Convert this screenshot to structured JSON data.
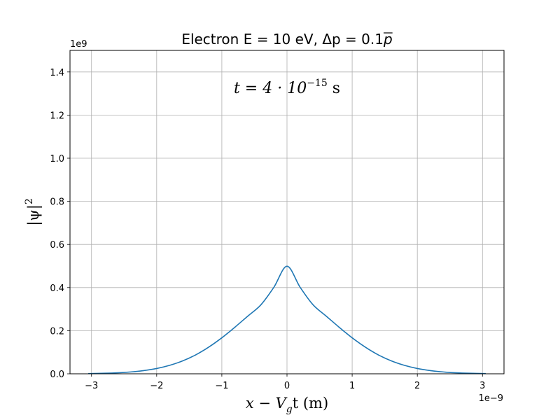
{
  "chart_data": {
    "type": "line",
    "title_prefix": "Electron E = 10 eV, Δp = 0.1",
    "title_symbol": "p",
    "xlabel_math": "x − V",
    "xlabel_sub": "g",
    "xlabel_tail": "t (m)",
    "ylabel_base": "|ψ|",
    "ylabel_sup": "2",
    "annotation_base": "t = 4 · 10",
    "annotation_sup": "−15",
    "annotation_tail": " s",
    "x_offset_label": "1e−9",
    "y_offset_label": "1e9",
    "xlim": [
      -3.33,
      3.33
    ],
    "ylim": [
      0,
      1.5
    ],
    "x_ticks": [
      -3,
      -2,
      -1,
      0,
      1,
      2,
      3
    ],
    "x_tick_labels": [
      "−3",
      "−2",
      "−1",
      "0",
      "1",
      "2",
      "3"
    ],
    "y_ticks": [
      0,
      0.2,
      0.4,
      0.6,
      0.8,
      1.0,
      1.2,
      1.4
    ],
    "y_tick_labels": [
      "0.0",
      "0.2",
      "0.4",
      "0.6",
      "0.8",
      "1.0",
      "1.2",
      "1.4"
    ],
    "grid": true,
    "series": [
      {
        "color": "#1f77b4",
        "x": [
          -3.05,
          -2.8,
          -2.6,
          -2.4,
          -2.2,
          -2.0,
          -1.8,
          -1.6,
          -1.4,
          -1.2,
          -1.0,
          -0.8,
          -0.6,
          -0.4,
          -0.2,
          0.0,
          0.2,
          0.4,
          0.6,
          0.8,
          1.0,
          1.2,
          1.4,
          1.6,
          1.8,
          2.0,
          2.2,
          2.4,
          2.6,
          2.8,
          3.05
        ],
        "y": [
          0.0011,
          0.0025,
          0.0045,
          0.0085,
          0.0148,
          0.0246,
          0.0393,
          0.06,
          0.088,
          0.124,
          0.167,
          0.216,
          0.268,
          0.32,
          0.402,
          0.499,
          0.402,
          0.32,
          0.268,
          0.216,
          0.167,
          0.124,
          0.088,
          0.06,
          0.0393,
          0.0246,
          0.0148,
          0.0085,
          0.0045,
          0.0025,
          0.0011
        ]
      }
    ]
  }
}
